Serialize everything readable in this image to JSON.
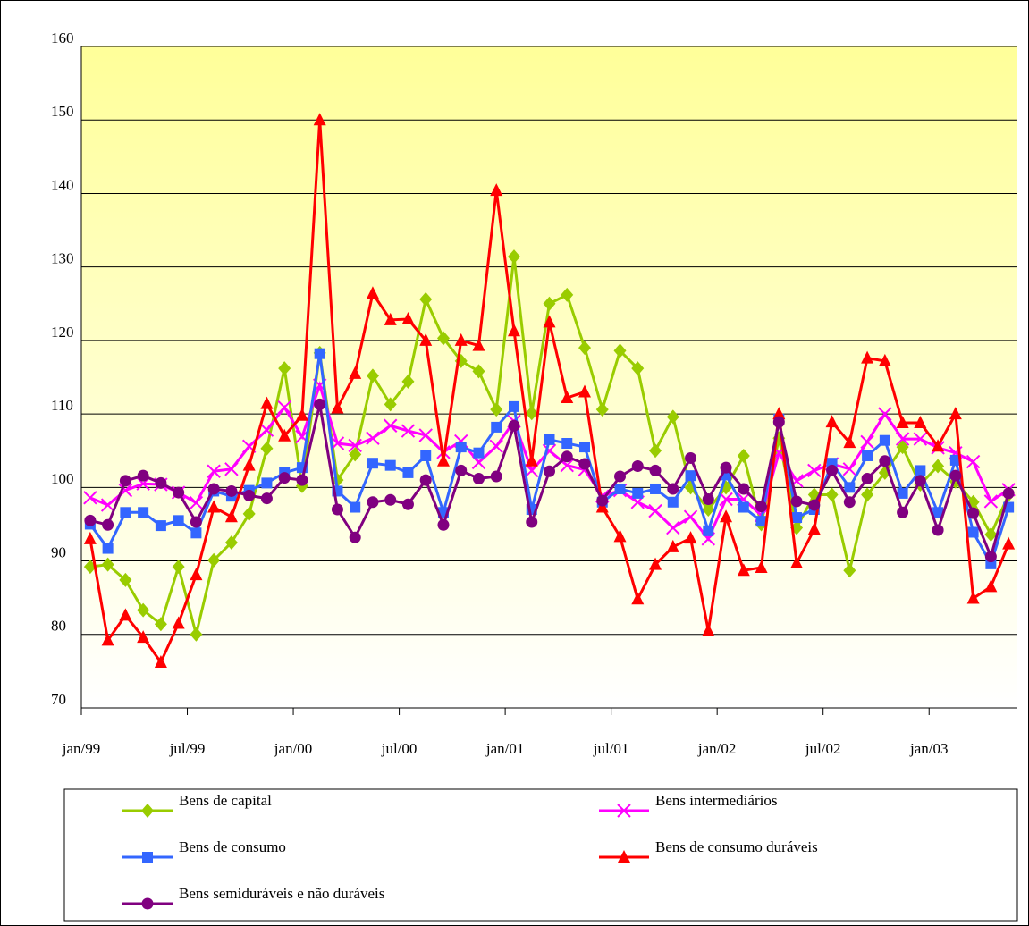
{
  "chart_data": {
    "type": "line",
    "categories": [
      "jan/99",
      null,
      null,
      null,
      null,
      null,
      "jul/99",
      null,
      null,
      null,
      null,
      null,
      "jan/00",
      null,
      null,
      null,
      null,
      null,
      "jul/00",
      null,
      null,
      null,
      null,
      null,
      "jan/01",
      null,
      null,
      null,
      null,
      null,
      "jul/01",
      null,
      null,
      null,
      null,
      null,
      "jan/02",
      null,
      null,
      null,
      null,
      null,
      "jul/02",
      null,
      null,
      null,
      null,
      null,
      "jan/03",
      null,
      null,
      null,
      null
    ],
    "ylim": [
      70,
      160
    ],
    "yticks": [
      70,
      80,
      90,
      100,
      110,
      120,
      130,
      140,
      150,
      160
    ],
    "grid": true,
    "series": [
      {
        "name": "Bens de capital",
        "color": "#99cc00",
        "marker": "diamond",
        "values": [
          89.2,
          89.5,
          87.4,
          83.3,
          81.4,
          89.2,
          80.0,
          90.1,
          92.5,
          96.4,
          105.3,
          116.2,
          100.2,
          118.3,
          101,
          104.5,
          115.2,
          111.3,
          114.4,
          125.6,
          120.3,
          117.2,
          115.8,
          110.6,
          131.4,
          110.1,
          125,
          126.2,
          119,
          110.6,
          118.6,
          116.2,
          105,
          109.6,
          100,
          97,
          100,
          104.3,
          95,
          106.7,
          94.5,
          99,
          99,
          88.7,
          99,
          102,
          105.5,
          100.4,
          102.9,
          100.8,
          98,
          93.6,
          99
        ]
      },
      {
        "name": "Bens intermediários",
        "color": "#ff00ff",
        "marker": "cross",
        "values": [
          98.6,
          97.6,
          99.6,
          100.5,
          100.4,
          99.3,
          97.9,
          102.2,
          102.5,
          105.6,
          107.8,
          110.9,
          106.9,
          113.9,
          106,
          105.7,
          106.7,
          108.4,
          107.7,
          107.1,
          104.8,
          106.3,
          103.4,
          105.6,
          109,
          102.3,
          105,
          103,
          102.4,
          98.8,
          99.6,
          98,
          96.8,
          94.5,
          96,
          93,
          98.4,
          98.4,
          96.2,
          104.7,
          100.9,
          102.3,
          103.2,
          102.5,
          106.2,
          110,
          106.6,
          106.6,
          105.4,
          104.7,
          103.5,
          98.1,
          99.7
        ]
      },
      {
        "name": "Bens de consumo",
        "color": "#3366ff",
        "marker": "square",
        "values": [
          95,
          91.7,
          96.6,
          96.6,
          94.8,
          95.5,
          93.8,
          99.5,
          98.8,
          99.6,
          100.6,
          102,
          102.7,
          118.2,
          99.5,
          97.3,
          103.3,
          103,
          102,
          104.3,
          96.6,
          105.5,
          104.7,
          108.2,
          111,
          97,
          106.5,
          106,
          105.5,
          98,
          99.8,
          99.2,
          99.8,
          98,
          101.6,
          94.1,
          101.7,
          97.3,
          95.4,
          109.3,
          95.9,
          97,
          103.3,
          100,
          104.3,
          106.4,
          99.2,
          102.3,
          96.6,
          103.7,
          93.9,
          89.6,
          97.3
        ]
      },
      {
        "name": "Bens de consumo duráveis",
        "color": "#ff0000",
        "marker": "triangle",
        "values": [
          93,
          79.2,
          82.6,
          79.6,
          76.2,
          81.5,
          88.1,
          97.3,
          96,
          103,
          111.4,
          107,
          109.8,
          150,
          110.8,
          115.5,
          126.4,
          122.8,
          122.9,
          120,
          103.6,
          120,
          119.3,
          140.4,
          121.3,
          103.6,
          122.5,
          112.2,
          113,
          97.3,
          93.3,
          84.8,
          89.5,
          91.9,
          93.1,
          80.5,
          96,
          88.7,
          89.1,
          110,
          89.7,
          94.3,
          108.9,
          106.1,
          117.6,
          117.2,
          108.8,
          108.8,
          105.6,
          110,
          84.9,
          86.5,
          92.3
        ]
      },
      {
        "name": "Bens semiduráveis e não duráveis",
        "color": "#800080",
        "marker": "circle",
        "values": [
          95.5,
          94.9,
          100.9,
          101.6,
          100.6,
          99.3,
          95.3,
          99.8,
          99.5,
          98.9,
          98.5,
          101.3,
          101,
          111.3,
          97,
          93.2,
          98,
          98.3,
          97.7,
          101,
          94.9,
          102.3,
          101.2,
          101.5,
          108.4,
          95.3,
          102.2,
          104.2,
          103.2,
          98.2,
          101.5,
          102.9,
          102.3,
          99.8,
          104,
          98.4,
          102.7,
          99.8,
          97.4,
          108.9,
          98.1,
          97.6,
          102.3,
          98,
          101.2,
          103.6,
          96.6,
          100.9,
          94.2,
          101.6,
          96.5,
          90.6,
          99.2
        ]
      }
    ]
  }
}
